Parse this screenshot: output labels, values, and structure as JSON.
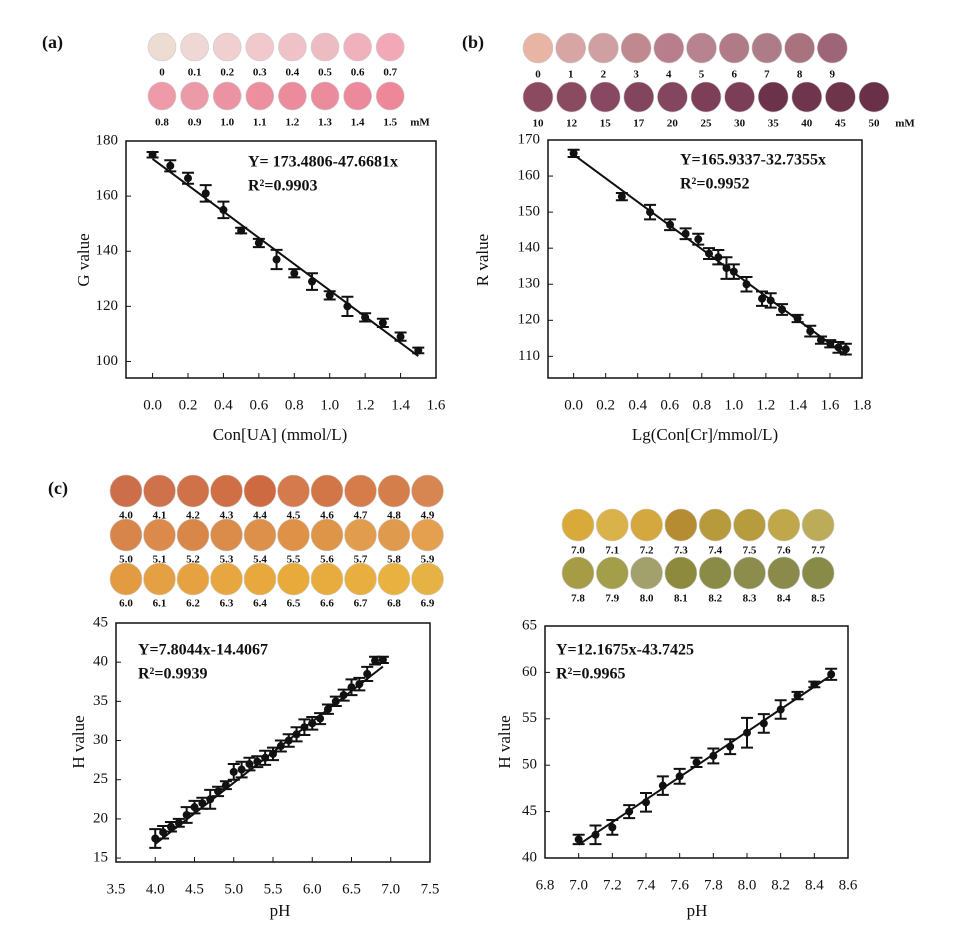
{
  "chart_data": [
    {
      "type": "scatter",
      "panel_label": "(a)",
      "unit_label": "mM",
      "swatches": {
        "labels": [
          "0",
          "0.1",
          "0.2",
          "0.3",
          "0.4",
          "0.5",
          "0.6",
          "0.7",
          "0.8",
          "0.9",
          "1.0",
          "1.1",
          "1.2",
          "1.3",
          "1.4",
          "1.5"
        ],
        "colors": [
          "#ecdcd2",
          "#eed7d4",
          "#efcfcf",
          "#f1c8cb",
          "#efc2c8",
          "#edbcc3",
          "#f0b0bc",
          "#f2a8b6",
          "#ef9aa9",
          "#ed9aa8",
          "#ec93a3",
          "#ee8fa0",
          "#ec8b9c",
          "#ea8c9c",
          "#ec8a9b",
          "#ee8798"
        ]
      },
      "equation": "Y= 173.4806-47.6681x",
      "r2": "R²=0.9903",
      "x_label": "Con[UA] (mmol/L)",
      "y_label": "G value",
      "x": [
        0,
        0.1,
        0.2,
        0.3,
        0.4,
        0.5,
        0.6,
        0.7,
        0.8,
        0.9,
        1.0,
        1.1,
        1.2,
        1.3,
        1.4,
        1.5
      ],
      "values": [
        175,
        171,
        166.5,
        161,
        155,
        147.5,
        143,
        137,
        132,
        129,
        124,
        120,
        116,
        114,
        109,
        104
      ],
      "errors": [
        1,
        2,
        2,
        3,
        3,
        1,
        1.5,
        3.5,
        1.5,
        3,
        1.5,
        3.5,
        1.5,
        1.5,
        1.5,
        1
      ],
      "trendline": {
        "x": [
          0,
          1.5
        ],
        "values": [
          173.48,
          101.96
        ]
      },
      "color": "#111111",
      "xlim": [
        -0.15,
        1.6
      ],
      "ylim": [
        94,
        180
      ],
      "xticks": [
        {
          "value": 0,
          "label": "0.0"
        },
        0.2,
        0.4,
        0.6,
        0.8,
        {
          "value": 1,
          "label": "1.0"
        },
        1.2,
        1.4,
        1.6
      ],
      "yticks": [
        100,
        120,
        140,
        160,
        180
      ]
    },
    {
      "type": "scatter",
      "panel_label": "(b)",
      "unit_label": "mM",
      "swatches": {
        "labels": [
          "0",
          "1",
          "2",
          "3",
          "4",
          "5",
          "6",
          "7",
          "8",
          "9",
          "10",
          "12",
          "15",
          "17",
          "20",
          "25",
          "30",
          "35",
          "40",
          "45",
          "50"
        ],
        "colors": [
          "#e8b4a4",
          "#d8a5a5",
          "#cf9fa1",
          "#c0898f",
          "#b97e8c",
          "#b88390",
          "#b07a86",
          "#ad7c88",
          "#a8737f",
          "#9e6478",
          "#8c4a61",
          "#8a4a60",
          "#884862",
          "#83455e",
          "#84465e",
          "#7d3f57",
          "#7c3d56",
          "#6c3249",
          "#6f354c",
          "#6e344a",
          "#6a3048"
        ]
      },
      "equation": "Y=165.9337-32.7355x",
      "r2": "R²=0.9952",
      "x_label": "Lg(Con[Cr]/mmol/L)",
      "y_label": "R value",
      "x": [
        0,
        0.301,
        0.477,
        0.602,
        0.699,
        0.778,
        0.845,
        0.903,
        0.954,
        1.0,
        1.079,
        1.176,
        1.23,
        1.301,
        1.398,
        1.477,
        1.544,
        1.602,
        1.653,
        1.699
      ],
      "values": [
        166.3,
        154.3,
        150,
        146.5,
        144,
        142.5,
        138.5,
        137.5,
        134.5,
        133.5,
        130,
        126,
        125.5,
        123,
        120.5,
        117,
        114.5,
        113.5,
        112.5,
        112
      ],
      "errors": [
        1,
        1,
        2,
        1.5,
        1.5,
        1.5,
        1.5,
        2,
        3,
        2,
        2,
        2,
        2,
        1.5,
        1,
        1.5,
        1,
        1,
        1.5,
        1.5
      ],
      "trendline": {
        "x": [
          0,
          1.7
        ],
        "values": [
          165.93,
          110.28
        ]
      },
      "color": "#111111",
      "xlim": [
        -0.16,
        1.8
      ],
      "ylim": [
        104,
        170
      ],
      "xticks": [
        {
          "value": 0,
          "label": "0.0"
        },
        0.2,
        0.4,
        0.6,
        0.8,
        {
          "value": 1,
          "label": "1.0"
        },
        1.2,
        1.4,
        1.6,
        1.8
      ],
      "yticks": [
        110,
        120,
        130,
        140,
        150,
        160,
        170
      ]
    },
    {
      "type": "scatter",
      "panel_label": "(c)",
      "swatches": {
        "labels": [
          "4.0",
          "4.1",
          "4.2",
          "4.3",
          "4.4",
          "4.5",
          "4.6",
          "4.7",
          "4.8",
          "4.9",
          "5.0",
          "5.1",
          "5.2",
          "5.3",
          "5.4",
          "5.5",
          "5.6",
          "5.7",
          "5.8",
          "5.9",
          "6.0",
          "6.1",
          "6.2",
          "6.3",
          "6.4",
          "6.5",
          "6.6",
          "6.7",
          "6.8",
          "6.9"
        ],
        "colors": [
          "#cd6e4a",
          "#cf714b",
          "#cf724a",
          "#d06f46",
          "#cd6a42",
          "#d47a4c",
          "#d27648",
          "#d67c4a",
          "#d47e4b",
          "#d78652",
          "#d8854c",
          "#db8a4c",
          "#d98749",
          "#dc8c4a",
          "#dd904a",
          "#df9247",
          "#de9548",
          "#e29c4e",
          "#e09a4d",
          "#e49f4f",
          "#e39b42",
          "#e5a043",
          "#e6a241",
          "#e7a640",
          "#e8a83e",
          "#e8aa3a",
          "#e8ab3d",
          "#e9ae40",
          "#e9b13f",
          "#e6b243"
        ]
      },
      "equation": "Y=7.8044x-14.4067",
      "r2": "R²=0.9939",
      "x_label": "pH",
      "y_label": "H value",
      "x": [
        4.0,
        4.1,
        4.2,
        4.3,
        4.4,
        4.5,
        4.6,
        4.7,
        4.8,
        4.9,
        5.0,
        5.1,
        5.2,
        5.3,
        5.4,
        5.5,
        5.6,
        5.7,
        5.8,
        5.9,
        6.0,
        6.1,
        6.2,
        6.3,
        6.4,
        6.5,
        6.6,
        6.7,
        6.8,
        6.9
      ],
      "values": [
        17.5,
        18.3,
        19,
        19.5,
        20.5,
        21.5,
        22,
        22.5,
        23.5,
        24.3,
        26,
        26.3,
        27,
        27.3,
        27.8,
        28.3,
        29.3,
        30,
        30.8,
        31.7,
        32.2,
        32.8,
        34,
        35,
        35.8,
        36.8,
        37.2,
        38.5,
        40.2,
        40.3
      ],
      "errors": [
        1.2,
        0.8,
        0.6,
        0.5,
        1,
        0.8,
        0.7,
        1.2,
        0.6,
        0.5,
        1,
        1,
        0.8,
        0.7,
        0.9,
        0.8,
        0.7,
        0.8,
        0.9,
        1,
        0.8,
        0.7,
        0.6,
        0.6,
        0.7,
        1,
        0.8,
        0.9,
        0.5,
        0.4
      ],
      "trendline": {
        "x": [
          4.0,
          6.9
        ],
        "values": [
          16.81,
          39.44
        ]
      },
      "color": "#111111",
      "xlim": [
        3.5,
        7.5
      ],
      "ylim": [
        14.5,
        45
      ],
      "xticks": [
        3.5,
        {
          "value": 4,
          "label": "4.0"
        },
        4.5,
        {
          "value": 5,
          "label": "5.0"
        },
        5.5,
        {
          "value": 6,
          "label": "6.0"
        },
        6.5,
        {
          "value": 7,
          "label": "7.0"
        },
        7.5
      ],
      "yticks": [
        15,
        20,
        25,
        30,
        35,
        40,
        45
      ]
    },
    {
      "type": "scatter",
      "swatches": {
        "labels": [
          "7.0",
          "7.1",
          "7.2",
          "7.3",
          "7.4",
          "7.5",
          "7.6",
          "7.7",
          "7.8",
          "7.9",
          "8.0",
          "8.1",
          "8.2",
          "8.3",
          "8.4",
          "8.5"
        ],
        "colors": [
          "#d9aa3a",
          "#dab24a",
          "#d4a83e",
          "#b58c32",
          "#b79a3c",
          "#b69c3c",
          "#c0a74a",
          "#bcab58",
          "#a69c46",
          "#a39e4a",
          "#a2a16c",
          "#8d8a3e",
          "#8a8b46",
          "#8c8d4c",
          "#8a8a4b",
          "#888a48"
        ]
      },
      "equation": "Y=12.1675x-43.7425",
      "r2": "R²=0.9965",
      "x_label": "pH",
      "y_label": "H value",
      "x": [
        7.0,
        7.1,
        7.2,
        7.3,
        7.4,
        7.5,
        7.6,
        7.7,
        7.8,
        7.9,
        8.0,
        8.1,
        8.2,
        8.3,
        8.4,
        8.5
      ],
      "values": [
        42,
        42.5,
        43.3,
        45,
        46,
        47.8,
        48.8,
        50.3,
        51,
        52,
        53.5,
        54.5,
        56,
        57.5,
        58.7,
        59.8
      ],
      "errors": [
        0.5,
        1,
        0.8,
        0.7,
        1,
        1,
        0.8,
        0.5,
        0.8,
        0.8,
        1.6,
        1,
        1,
        0.4,
        0.3,
        0.6
      ],
      "trendline": {
        "x": [
          7.0,
          8.5
        ],
        "values": [
          41.43,
          59.68
        ]
      },
      "color": "#111111",
      "xlim": [
        6.8,
        8.6
      ],
      "ylim": [
        40,
        65
      ],
      "xticks": [
        6.8,
        {
          "value": 7,
          "label": "7.0"
        },
        7.2,
        7.4,
        7.6,
        7.8,
        {
          "value": 8,
          "label": "8.0"
        },
        8.2,
        8.4,
        8.6
      ],
      "yticks": [
        40,
        45,
        50,
        55,
        60,
        65
      ]
    }
  ]
}
